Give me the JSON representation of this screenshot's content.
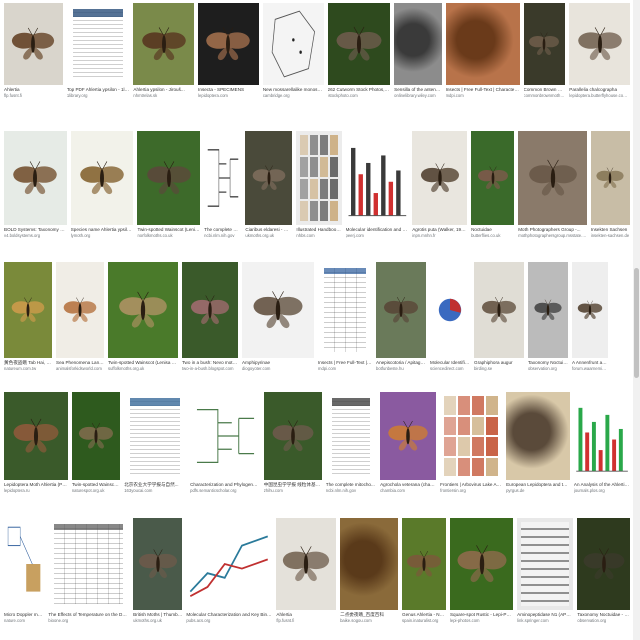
{
  "results": [
    {
      "caption": "Ahlertia",
      "source": "flp.fusnt.fi",
      "bg": "#d9d5cc",
      "fg": "#6a4a2e",
      "kind": "moth"
    },
    {
      "caption": "Top PDF Ahlertia ypsilon - 1library.org",
      "source": "1library.org",
      "bg": "#ffffff",
      "fg": "#2a4f7a",
      "kind": "doc"
    },
    {
      "caption": "Ahlertia ypsilon - Jirouš...",
      "source": "nhmtrelas.sk",
      "bg": "#7a8a4a",
      "fg": "#5a3a22",
      "kind": "moth"
    },
    {
      "caption": "Insecta - SPECIMENS",
      "source": "lepidoptera.com",
      "bg": "#1e1e1e",
      "fg": "#9a6a4a",
      "kind": "moth"
    },
    {
      "caption": "New mossarellalike monosperm genus...",
      "source": "cambridge.org",
      "bg": "#f4f4f4",
      "fg": "#555555",
      "kind": "map"
    },
    {
      "caption": "262 Cutworm Stock Photos, Pictures & Roya...",
      "source": "istockphoto.com",
      "bg": "#2e4a1e",
      "fg": "#6a5a4a",
      "kind": "moth"
    },
    {
      "caption": "Sensilla of the antenna and pro...",
      "source": "onlinelibrary.wiley.com",
      "bg": "#8c8c8c",
      "fg": "#3a3a3a",
      "kind": "photo"
    },
    {
      "caption": "Insects | Free Full-Text | Characterization of Genetic...",
      "source": "mdpi.com",
      "bg": "#b8734a",
      "fg": "#6a3a1a",
      "kind": "photo"
    },
    {
      "caption": "Common Brown Moth and R...",
      "source": "commonbrownmoths.co.uk",
      "bg": "#3a3a2a",
      "fg": "#6a5a48",
      "kind": "moth"
    },
    {
      "caption": "Parallelia chalcographa",
      "source": "lepidoptera.butterflyhouse.com.au",
      "bg": "#e8e4dc",
      "fg": "#7a6a5a",
      "kind": "moth"
    },
    {
      "caption": "BOLD Systems: Taxonomy Browser - Ahlertia...",
      "source": "v4.boldsystems.org",
      "bg": "#e6ebe6",
      "fg": "#7a5a3a",
      "kind": "moth"
    },
    {
      "caption": "Species name Ahlertia ypsilon (Brazilian...",
      "source": "lymoth.org",
      "bg": "#f2f2ea",
      "fg": "#8a6a3a",
      "kind": "moth"
    },
    {
      "caption": "Twin-spotted Wainscot (Lenisa geminipuncta)...",
      "source": "norfolkmoths.co.uk",
      "bg": "#3d6a2a",
      "fg": "#5a4a3a",
      "kind": "moth"
    },
    {
      "caption": "The complete mitochondrial genome...",
      "source": "ncbi.nlm.nih.gov",
      "bg": "#ffffff",
      "fg": "#444444",
      "kind": "tree"
    },
    {
      "caption": "Ciaribus eldaresi - Whitee-Dotted...",
      "source": "ukmoths.org.uk",
      "bg": "#4a4a3a",
      "fg": "#7a6a5a",
      "kind": "moth"
    },
    {
      "caption": "Illustrated Handbook of Lepidoptera...",
      "source": "nhbs.com",
      "bg": "#ececec",
      "fg": "#555555",
      "kind": "grid"
    },
    {
      "caption": "Molecular identification and expression...",
      "source": "peerj.com",
      "bg": "#ffffff",
      "fg": "#3a3a3a",
      "kind": "bars"
    },
    {
      "caption": "Agrotis puta (Walker, 1965) - Noctuid...",
      "source": "inpn.mnhn.fr",
      "bg": "#e9e6df",
      "fg": "#5a4a3a",
      "kind": "moth"
    },
    {
      "caption": "Noctuidae",
      "source": "butterflies.co.uk",
      "bg": "#3a6a2a",
      "fg": "#7a5a4a",
      "kind": "moth"
    },
    {
      "caption": "Moth Photographers Group -...",
      "source": "mothphotographersgroup.msstate.edu",
      "bg": "#8a7a6a",
      "fg": "#6a5a4a",
      "kind": "moth"
    },
    {
      "caption": "Insekten Sachsen",
      "source": "insekten-sachsen.de",
      "bg": "#c8bda6",
      "fg": "#8a7a5a",
      "kind": "moth"
    },
    {
      "caption": "黃色夜盜蛾 Tab Hai, Lepidoptera Noctuidae...",
      "source": "natureum.com.tw",
      "bg": "#7a8a3a",
      "fg": "#c89a4a",
      "kind": "moth"
    },
    {
      "caption": "Sea Phenomena Lane for three...",
      "source": "animalsforkidsworld.com",
      "bg": "#f0ede6",
      "fg": "#b87a4a",
      "kind": "moth"
    },
    {
      "caption": "Twin-spotted Wainscot (Lenisa geminipuncta)...",
      "source": "suffolkmoths.org.uk",
      "bg": "#4a7a2a",
      "fg": "#a89060",
      "kind": "moth"
    },
    {
      "caption": "Two in a bush: Nevo moths, Arctium...",
      "source": "two-in-a-bush.blogspot.com",
      "bg": "#3a5a2a",
      "fg": "#9a6a6a",
      "kind": "moth"
    },
    {
      "caption": "Amphipyrinae",
      "source": "diogoyoter.com",
      "bg": "#f2f2f2",
      "fg": "#6a5a4a",
      "kind": "moth"
    },
    {
      "caption": "Insects | Free Full-Text | Development of a Species Di...",
      "source": "mdpi.com",
      "bg": "#ffffff",
      "fg": "#2a5a9a",
      "kind": "table"
    },
    {
      "caption": "Anepiscotoria / Apitageria - Ahl...",
      "source": "botfunbeste.hu",
      "bg": "#6a7a5a",
      "fg": "#5a4a3a",
      "kind": "moth"
    },
    {
      "caption": "Molecular Identification and sex distribution o...",
      "source": "sciencedirect.com",
      "bg": "#ffffff",
      "fg": "#c03030",
      "kind": "pie"
    },
    {
      "caption": "Graphiphora augur",
      "source": "birding.se",
      "bg": "#e0ddd5",
      "fg": "#6a5a4a",
      "kind": "moth"
    },
    {
      "caption": "Taxonomy Noctuidae - Ob...",
      "source": "observation.org",
      "bg": "#bbbbbb",
      "fg": "#4a4a4a",
      "kind": "moth"
    },
    {
      "caption": "A Annenfrunt ahlgreit tm...",
      "source": "forum.waarneming.nl",
      "bg": "#eeeeee",
      "fg": "#5a4a3a",
      "kind": "moth"
    },
    {
      "caption": "Lepidoptera Moth Ahlertia (Proaceo...",
      "source": "lepidoptera.ru",
      "bg": "#3a5a2a",
      "fg": "#8a5a3a",
      "kind": "moth"
    },
    {
      "caption": "Twin-spotted Wainscot | Nat...",
      "source": "naturespot.org.uk",
      "bg": "#2e5a1e",
      "fg": "#7a6a4a",
      "kind": "moth"
    },
    {
      "caption": "北京农业大学学报与自然...",
      "source": "163youcai.com",
      "bg": "#ffffff",
      "fg": "#3a6a9a",
      "kind": "doc"
    },
    {
      "caption": "Characterization and Phylogenetic Analysis of the...",
      "source": "pdfs.semanticscholar.org",
      "bg": "#ffffff",
      "fg": "#4a7a4a",
      "kind": "tree"
    },
    {
      "caption": "中国昆虫学学报 线粒体基因组研究",
      "source": "zhihu.com",
      "bg": "#3a5a2a",
      "fg": "#6a5a4a",
      "kind": "moth"
    },
    {
      "caption": "The complete mitocho...",
      "source": "ncbi.nlm.nih.gov",
      "bg": "#ffffff",
      "fg": "#444444",
      "kind": "doc"
    },
    {
      "caption": "Agrochola veterana (chamba...",
      "source": "chambia.com",
      "bg": "#8a5aa0",
      "fg": "#c87a3a",
      "kind": "moth"
    },
    {
      "caption": "Frontiers | Arbovirus Lake Atlas of an Emergi...",
      "source": "frontiersin.org",
      "bg": "#ffffff",
      "fg": "#c04a2a",
      "kind": "grid"
    },
    {
      "caption": "European Lepidoptera and their ecology: A...",
      "source": "pyrgus.de",
      "bg": "#d8c8a8",
      "fg": "#5a4a3a",
      "kind": "photo"
    },
    {
      "caption": "An Analysis of the Ahlertia ypsilon Transcriptome fro...",
      "source": "journals.plos.org",
      "bg": "#ffffff",
      "fg": "#2aa84a",
      "kind": "bars"
    },
    {
      "caption": "Micro Doppler measurement of inse...",
      "source": "nature.com",
      "bg": "#ffffff",
      "fg": "#2a5a9a",
      "kind": "diagram"
    },
    {
      "caption": "The Effects of Temperature on the Development of the M...",
      "source": "bioone.org",
      "bg": "#ffffff",
      "fg": "#555555",
      "kind": "table"
    },
    {
      "caption": "British Moths | Thumbnail List by F...",
      "source": "ukmoths.org.uk",
      "bg": "#4a5a4a",
      "fg": "#6a5a4a",
      "kind": "moth"
    },
    {
      "caption": "Molecular Characterization and Key Binding Sites of...",
      "source": "pubs.acs.org",
      "bg": "#ffffff",
      "fg": "#2a7a9a",
      "kind": "lines"
    },
    {
      "caption": "Ahlertia",
      "source": "flp.fusnt.fi",
      "bg": "#e4e1da",
      "fg": "#7a6a5a",
      "kind": "moth"
    },
    {
      "caption": "二点委夜蛾_百度百科",
      "source": "baike.sogou.com",
      "bg": "#8a6a3a",
      "fg": "#5a3a1a",
      "kind": "photo"
    },
    {
      "caption": "Genus Ahlertia - Noctuidae",
      "source": "spain.inaturalist.org",
      "bg": "#5a7a2a",
      "fg": "#7a5a3a",
      "kind": "moth"
    },
    {
      "caption": "Square-spot Rustic - Lepi-Photos",
      "source": "lepi-photos.com",
      "bg": "#3a6a1e",
      "fg": "#8a6a4a",
      "kind": "moth"
    },
    {
      "caption": "Aminopeptidase N1 (APN1)...",
      "source": "link.springer.com",
      "bg": "#e8e8e8",
      "fg": "#3a3a3a",
      "kind": "gel"
    },
    {
      "caption": "Taxonomy Noctuidae - Observation.org",
      "source": "observation.org",
      "bg": "#2e3a1e",
      "fg": "#3a3a2a",
      "kind": "moth"
    }
  ]
}
